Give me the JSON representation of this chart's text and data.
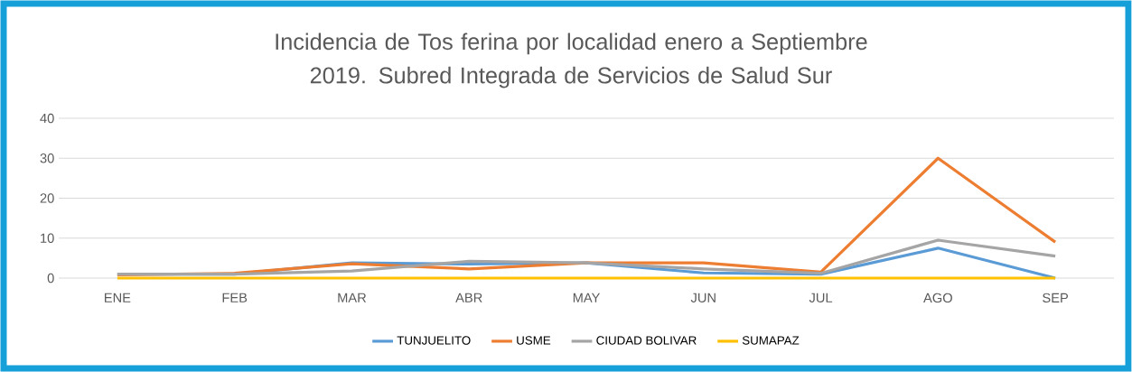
{
  "chart_data": {
    "type": "line",
    "title": "Incidencia de Tos ferina por localidad enero a Septiembre 2019. Subred Integrada de Servicios de Salud Sur",
    "categories": [
      "ENE",
      "FEB",
      "MAR",
      "ABR",
      "MAY",
      "JUN",
      "JUL",
      "AGO",
      "SEP"
    ],
    "series": [
      {
        "name": "TUNJUELITO",
        "color": "#5b9bd5",
        "values": [
          1,
          1,
          3.8,
          3.5,
          3.8,
          1.3,
          1,
          7.5,
          0
        ]
      },
      {
        "name": "USME",
        "color": "#ed7d31",
        "values": [
          0.8,
          1.2,
          3.6,
          2.3,
          3.8,
          3.8,
          1.5,
          30,
          9
        ]
      },
      {
        "name": "CIUDAD BOLIVAR",
        "color": "#a5a5a5",
        "values": [
          1,
          1,
          1.8,
          4.2,
          3.8,
          2.3,
          1.2,
          9.5,
          5.5
        ]
      },
      {
        "name": "SUMAPAZ",
        "color": "#ffc000",
        "values": [
          0,
          0,
          0,
          0,
          0,
          0,
          0,
          0,
          0
        ]
      }
    ],
    "ylim": [
      0,
      40
    ],
    "yticks": [
      0,
      10,
      20,
      30,
      40
    ],
    "grid": "y",
    "legend": "bottom",
    "marker": "none",
    "line_style": "solid"
  }
}
